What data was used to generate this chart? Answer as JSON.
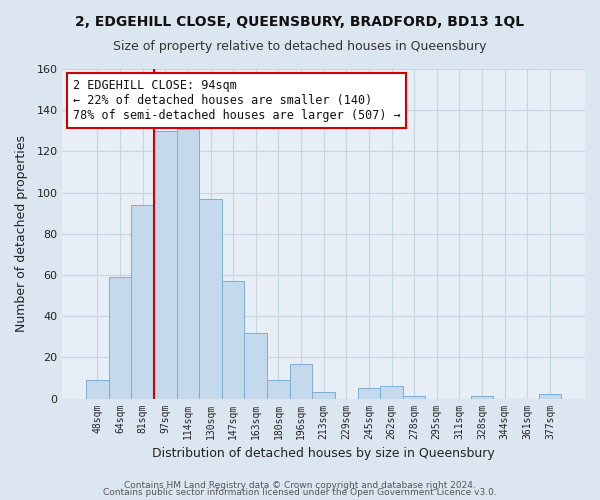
{
  "title1": "2, EDGEHILL CLOSE, QUEENSBURY, BRADFORD, BD13 1QL",
  "title2": "Size of property relative to detached houses in Queensbury",
  "xlabel": "Distribution of detached houses by size in Queensbury",
  "ylabel": "Number of detached properties",
  "bar_labels": [
    "48sqm",
    "64sqm",
    "81sqm",
    "97sqm",
    "114sqm",
    "130sqm",
    "147sqm",
    "163sqm",
    "180sqm",
    "196sqm",
    "213sqm",
    "229sqm",
    "245sqm",
    "262sqm",
    "278sqm",
    "295sqm",
    "311sqm",
    "328sqm",
    "344sqm",
    "361sqm",
    "377sqm"
  ],
  "bar_values": [
    9,
    59,
    94,
    130,
    131,
    97,
    57,
    32,
    9,
    17,
    3,
    0,
    5,
    6,
    1,
    0,
    0,
    1,
    0,
    0,
    2
  ],
  "bar_color": "#c5d9ed",
  "bar_edge_color": "#7bafd4",
  "vline_color": "#cc0000",
  "ylim": [
    0,
    160
  ],
  "yticks": [
    0,
    20,
    40,
    60,
    80,
    100,
    120,
    140,
    160
  ],
  "annotation_line1": "2 EDGEHILL CLOSE: 94sqm",
  "annotation_line2": "← 22% of detached houses are smaller (140)",
  "annotation_line3": "78% of semi-detached houses are larger (507) →",
  "annotation_box_edge": "#cc0000",
  "footer1": "Contains HM Land Registry data © Crown copyright and database right 2024.",
  "footer2": "Contains public sector information licensed under the Open Government Licence v3.0.",
  "fig_bg_color": "#dce6f0",
  "plot_bg_color": "#e8eef5",
  "grid_color": "#c8d4e0",
  "vline_x_index": 3
}
